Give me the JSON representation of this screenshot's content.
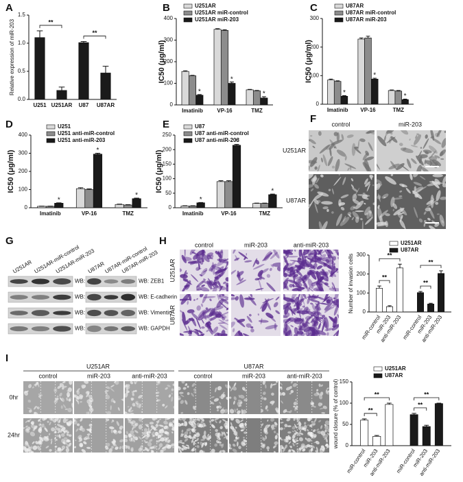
{
  "panel_labels": [
    "A",
    "B",
    "C",
    "D",
    "E",
    "F",
    "G",
    "H",
    "I"
  ],
  "chart_data": [
    {
      "type": "bar",
      "ylabel": "Relative expression of miR-203",
      "group_by": "category",
      "categories": [
        "U251",
        "U251AR",
        "U87",
        "U87AR"
      ],
      "series": [
        {
          "color": "#1a1a1a",
          "values": [
            1.1,
            0.16,
            1.01,
            0.47
          ],
          "errors": [
            0.12,
            0.06,
            0.02,
            0.12
          ]
        }
      ],
      "ylim": [
        0,
        1.5
      ],
      "yticks": [
        {
          "value": 0,
          "label": "0.0"
        },
        {
          "value": 0.5,
          "label": "0.5"
        },
        {
          "value": 1,
          "label": "1.0"
        },
        {
          "value": 1.5,
          "label": "1.5"
        }
      ],
      "brackets": [
        {
          "between": [
            "U251",
            "U251AR"
          ],
          "label": "**"
        },
        {
          "between": [
            "U87",
            "U87AR"
          ],
          "label": "**"
        }
      ]
    },
    {
      "type": "bar",
      "ylabel": "IC50 (μg/ml)",
      "group_by": "category",
      "categories": [
        "Imatinib",
        "VP-16",
        "TMZ"
      ],
      "series": [
        {
          "name": "U251AR",
          "color": "#d9d9d9",
          "values": [
            155,
            350,
            70
          ],
          "errors": [
            3,
            3,
            2
          ]
        },
        {
          "name": "U251AR miR-control",
          "color": "#8c8c8c",
          "values": [
            135,
            345,
            65
          ],
          "errors": [
            2,
            3,
            2
          ]
        },
        {
          "name": "U251AR miR-203",
          "color": "#1a1a1a",
          "values": [
            45,
            100,
            32
          ],
          "errors": [
            3,
            6,
            6
          ],
          "annotations": [
            "*",
            "*",
            "*"
          ]
        }
      ],
      "ylim": [
        0,
        400
      ],
      "yticks": [
        0,
        100,
        200,
        300,
        400
      ]
    },
    {
      "type": "bar",
      "ylabel": "IC50 (μg/ml)",
      "group_by": "category",
      "categories": [
        "Imatinib",
        "VP-16",
        "TMZ"
      ],
      "series": [
        {
          "name": "U87AR",
          "color": "#d9d9d9",
          "values": [
            85,
            228,
            48
          ],
          "errors": [
            3,
            4,
            2
          ]
        },
        {
          "name": "U87AR miR-control",
          "color": "#8c8c8c",
          "values": [
            80,
            232,
            46
          ],
          "errors": [
            2,
            6,
            2
          ]
        },
        {
          "name": "U87AR miR-203",
          "color": "#1a1a1a",
          "values": [
            28,
            88,
            16
          ],
          "errors": [
            2,
            3,
            2
          ],
          "annotations": [
            "*",
            "*",
            "*"
          ]
        }
      ],
      "ylim": [
        0,
        300
      ],
      "yticks": [
        0,
        100,
        200,
        300
      ]
    },
    {
      "type": "bar",
      "ylabel": "IC50 (μg/ml)",
      "group_by": "category",
      "categories": [
        "Imatinib",
        "VP-16",
        "TMZ"
      ],
      "series": [
        {
          "name": "U251",
          "color": "#d9d9d9",
          "values": [
            8,
            105,
            18
          ],
          "errors": [
            1,
            5,
            2
          ]
        },
        {
          "name": "U251 anti-miR-control",
          "color": "#8c8c8c",
          "values": [
            8,
            100,
            15
          ],
          "errors": [
            1,
            4,
            2
          ]
        },
        {
          "name": "U251 anti-miR-203",
          "color": "#1a1a1a",
          "values": [
            25,
            295,
            50
          ],
          "errors": [
            2,
            5,
            3
          ],
          "annotations": [
            "*",
            "*",
            "*"
          ]
        }
      ],
      "ylim": [
        0,
        400
      ],
      "yticks": [
        0,
        100,
        200,
        300,
        400
      ]
    },
    {
      "type": "bar",
      "ylabel": "IC50 (μg/ml)",
      "group_by": "category",
      "categories": [
        "Imatinib",
        "VP-16",
        "TMZ"
      ],
      "series": [
        {
          "name": "U87",
          "color": "#d9d9d9",
          "values": [
            6,
            90,
            15
          ],
          "errors": [
            1,
            3,
            1
          ]
        },
        {
          "name": "U87 anti-miR-control",
          "color": "#8c8c8c",
          "values": [
            6,
            90,
            15
          ],
          "errors": [
            1,
            3,
            1
          ]
        },
        {
          "name": "U87 anti-miR-203",
          "color": "#1a1a1a",
          "values": [
            17,
            215,
            45
          ],
          "errors": [
            1,
            3,
            2
          ],
          "annotations": [
            "*",
            "*",
            "*"
          ]
        }
      ],
      "ylim": [
        0,
        250
      ],
      "yticks": [
        0,
        50,
        100,
        150,
        200,
        250
      ]
    },
    {
      "type": "bar",
      "ylabel": "Number of invasion cells",
      "group_by": "series",
      "categories": [
        "miR-control",
        "miR-203",
        "anti-miR-203"
      ],
      "series": [
        {
          "name": "U251AR",
          "color": "#ffffff",
          "values": [
            125,
            28,
            232
          ],
          "errors": [
            12,
            5,
            20
          ]
        },
        {
          "name": "U87AR",
          "color": "#1a1a1a",
          "values": [
            102,
            42,
            203
          ],
          "errors": [
            6,
            4,
            14
          ]
        }
      ],
      "ylim": [
        0,
        300
      ],
      "yticks": [
        0,
        100,
        200,
        300
      ],
      "brackets": [
        {
          "series": "U251AR",
          "between": [
            "miR-control",
            "miR-203"
          ],
          "label": "**"
        },
        {
          "series": "U251AR",
          "between": [
            "miR-control",
            "anti-miR-203"
          ],
          "label": "**"
        },
        {
          "series": "U87AR",
          "between": [
            "miR-control",
            "miR-203"
          ],
          "label": "**"
        },
        {
          "series": "U87AR",
          "between": [
            "miR-control",
            "anti-miR-203"
          ],
          "label": "**"
        }
      ]
    },
    {
      "type": "bar",
      "ylabel": "wound closure (% of control)",
      "group_by": "series",
      "categories": [
        "miR-control",
        "miR-203",
        "anti-miR-203"
      ],
      "series": [
        {
          "name": "U251AR",
          "color": "#ffffff",
          "values": [
            60,
            22,
            97
          ],
          "errors": [
            3,
            2,
            3
          ]
        },
        {
          "name": "U87AR",
          "color": "#1a1a1a",
          "values": [
            73,
            45,
            99
          ],
          "errors": [
            3,
            3,
            1
          ]
        }
      ],
      "ylim": [
        0,
        150
      ],
      "yticks": [
        0,
        50,
        100,
        150
      ],
      "brackets": [
        {
          "series": "U251AR",
          "between": [
            "miR-control",
            "miR-203"
          ],
          "label": "**"
        },
        {
          "series": "U251AR",
          "between": [
            "miR-control",
            "anti-miR-203"
          ],
          "label": "**"
        },
        {
          "series": "U87AR",
          "between": [
            "miR-control",
            "miR-203"
          ],
          "label": "**"
        },
        {
          "series": "U87AR",
          "between": [
            "miR-control",
            "anti-miR-203"
          ],
          "label": "**"
        }
      ]
    }
  ],
  "micrographs_F": {
    "columns": [
      "control",
      "miR-203"
    ],
    "rows": [
      "U251AR",
      "U87AR"
    ]
  },
  "western_G": {
    "lanes_left": [
      "U251AR",
      "U251AR-miR-control",
      "U251AR-miR-203"
    ],
    "lanes_right": [
      "U87AR",
      "U87AR-miR-control",
      "U87AR-miR-203"
    ],
    "probes_left": [
      "WB: ZEB1",
      "WB: E-cadherin",
      "WB: Vimentin",
      "WB: GAPDH"
    ],
    "probes_right": [
      "WB: ZEB1",
      "WB: E-cadherin",
      "WB: Vimentin",
      "WB: GAPDH"
    ]
  },
  "micrographs_H": {
    "columns": [
      "control",
      "miR-203",
      "anti-miR-203"
    ],
    "rows": [
      "U251AR",
      "U87AR"
    ]
  },
  "micrographs_I": {
    "groups": [
      "U251AR",
      "U87AR"
    ],
    "columns": [
      "control",
      "miR-203",
      "anti-miR-203"
    ],
    "rows": [
      "0hr",
      "24hr"
    ]
  }
}
